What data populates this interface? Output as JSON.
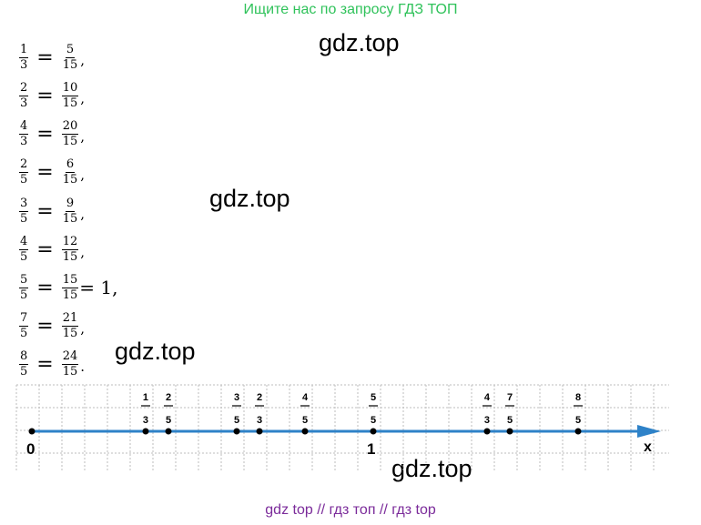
{
  "banner": "Ищите нас по запросу ГДЗ ТОП",
  "watermarks": [
    "gdz.top",
    "gdz.top",
    "gdz.top",
    "gdz.top"
  ],
  "equations": [
    {
      "lhs": {
        "n": "1",
        "d": "3"
      },
      "rhs": {
        "n": "5",
        "d": "15"
      },
      "tail": ","
    },
    {
      "lhs": {
        "n": "2",
        "d": "3"
      },
      "rhs": {
        "n": "10",
        "d": "15"
      },
      "tail": ","
    },
    {
      "lhs": {
        "n": "4",
        "d": "3"
      },
      "rhs": {
        "n": "20",
        "d": "15"
      },
      "tail": ","
    },
    {
      "lhs": {
        "n": "2",
        "d": "5"
      },
      "rhs": {
        "n": "6",
        "d": "15"
      },
      "tail": ","
    },
    {
      "lhs": {
        "n": "3",
        "d": "5"
      },
      "rhs": {
        "n": "9",
        "d": "15"
      },
      "tail": ","
    },
    {
      "lhs": {
        "n": "4",
        "d": "5"
      },
      "rhs": {
        "n": "12",
        "d": "15"
      },
      "tail": ","
    },
    {
      "lhs": {
        "n": "5",
        "d": "5"
      },
      "rhs": {
        "n": "15",
        "d": "15"
      },
      "extra": "= 1,",
      "tail": ""
    },
    {
      "lhs": {
        "n": "7",
        "d": "5"
      },
      "rhs": {
        "n": "21",
        "d": "15"
      },
      "tail": ","
    },
    {
      "lhs": {
        "n": "8",
        "d": "5"
      },
      "rhs": {
        "n": "24",
        "d": "15"
      },
      "tail": "."
    }
  ],
  "number_line": {
    "axis_label": "x",
    "origin_label": "0",
    "unit_label": "1",
    "points": [
      {
        "n": "1",
        "d": "3",
        "value": 0.3333
      },
      {
        "n": "2",
        "d": "5",
        "value": 0.4
      },
      {
        "n": "3",
        "d": "5",
        "value": 0.6
      },
      {
        "n": "2",
        "d": "3",
        "value": 0.6667
      },
      {
        "n": "4",
        "d": "5",
        "value": 0.8
      },
      {
        "n": "5",
        "d": "5",
        "value": 1
      },
      {
        "n": "4",
        "d": "3",
        "value": 1.3333
      },
      {
        "n": "7",
        "d": "5",
        "value": 1.4
      },
      {
        "n": "8",
        "d": "5",
        "value": 1.6
      }
    ],
    "line_color": "#2e82c8"
  },
  "footer": "gdz top  //  гдз топ  //  гдз top"
}
